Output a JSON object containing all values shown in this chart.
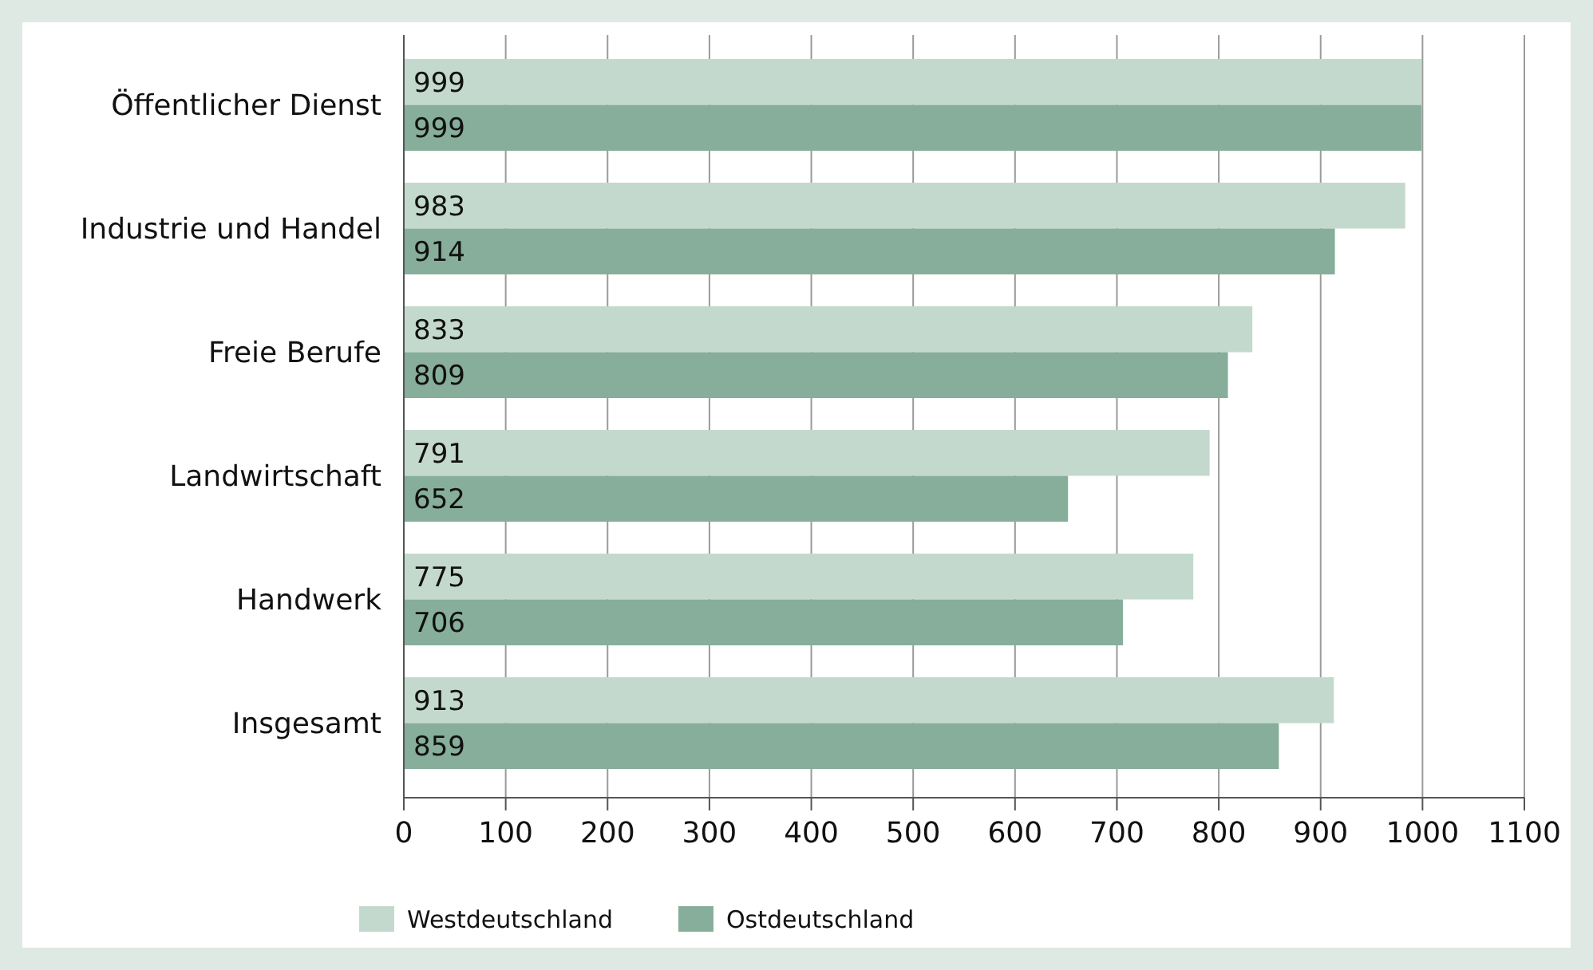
{
  "chart_data": {
    "type": "bar",
    "orientation": "horizontal",
    "categories": [
      "Öffentlicher Dienst",
      "Industrie und Handel",
      "Freie Berufe",
      "Landwirtschaft",
      "Handwerk",
      "Insgesamt"
    ],
    "series": [
      {
        "name": "Westdeutschland",
        "color": "#c4d9cd",
        "values": [
          999,
          983,
          833,
          791,
          775,
          913
        ]
      },
      {
        "name": "Ostdeutschland",
        "color": "#86ae9b",
        "values": [
          999,
          914,
          809,
          652,
          706,
          859
        ]
      }
    ],
    "xlim": [
      0,
      1100
    ],
    "xticks": [
      0,
      100,
      200,
      300,
      400,
      500,
      600,
      700,
      800,
      900,
      1000,
      1100
    ],
    "grid": "x",
    "legend": "bottom",
    "data_labels": true
  }
}
